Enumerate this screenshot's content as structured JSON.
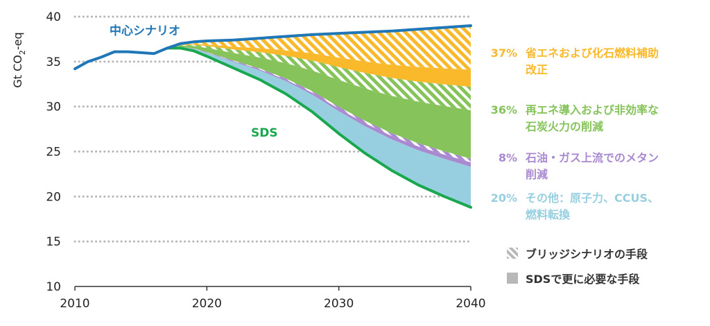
{
  "chart_data": {
    "type": "area",
    "ylabel": "Gt CO2-eq",
    "ylabel_main": "Gt CO",
    "ylabel_sub": "2",
    "ylabel_suffix": "-eq",
    "xlim": [
      2010,
      2040
    ],
    "ylim": [
      10,
      40
    ],
    "x_ticks": [
      "2010",
      "2020",
      "2030",
      "2040"
    ],
    "y_ticks": [
      "10",
      "15",
      "20",
      "25",
      "30",
      "35",
      "40"
    ],
    "grid": "horizontal-dotted",
    "series": [
      {
        "name": "中心シナリオ",
        "color": "#1f77b8",
        "points": [
          [
            2010,
            34.2
          ],
          [
            2011,
            35.0
          ],
          [
            2012,
            35.5
          ],
          [
            2013,
            36.1
          ],
          [
            2014,
            36.1
          ],
          [
            2015,
            36.0
          ],
          [
            2016,
            35.9
          ],
          [
            2017,
            36.5
          ],
          [
            2018,
            37.0
          ],
          [
            2019,
            37.2
          ],
          [
            2020,
            37.3
          ],
          [
            2022,
            37.4
          ],
          [
            2025,
            37.7
          ],
          [
            2028,
            38.0
          ],
          [
            2031,
            38.2
          ],
          [
            2034,
            38.4
          ],
          [
            2037,
            38.7
          ],
          [
            2040,
            39.0
          ]
        ]
      },
      {
        "name": "SDS",
        "color": "#1aa84f",
        "points": [
          [
            2017,
            36.5
          ],
          [
            2018,
            36.5
          ],
          [
            2019,
            36.2
          ],
          [
            2020,
            35.6
          ],
          [
            2022,
            34.3
          ],
          [
            2024,
            33.0
          ],
          [
            2026,
            31.4
          ],
          [
            2028,
            29.4
          ],
          [
            2030,
            27.0
          ],
          [
            2032,
            24.8
          ],
          [
            2034,
            22.9
          ],
          [
            2036,
            21.3
          ],
          [
            2038,
            20.0
          ],
          [
            2040,
            18.8
          ]
        ]
      }
    ],
    "wedges": [
      {
        "label": "省エネおよび化石燃料補助改正",
        "label_lines": [
          "省エネおよび化石燃料補助",
          "改正"
        ],
        "pct": "37%",
        "color": "#f9b92b",
        "bridge_bottom_2040": 34.1,
        "solid_bottom_2040": 32.2
      },
      {
        "label": "再エネ導入および非効率な石炭火力の削減",
        "label_lines": [
          "再エネ導入および非効率な",
          "石炭火力の削減"
        ],
        "pct": "36%",
        "color": "#86c35a",
        "bridge_bottom_2040": 29.6,
        "solid_bottom_2040": 24.2
      },
      {
        "label": "石油・ガス上流でのメタン削減",
        "label_lines": [
          "石油・ガス上流でのメタン",
          "削減"
        ],
        "pct": "8%",
        "color": "#a98ad0",
        "bridge_bottom_2040": 23.8,
        "solid_bottom_2040": 23.3
      },
      {
        "label": "その他：原子力、CCUS、燃料転換",
        "label_lines": [
          "その他：原子力、CCUS、",
          "燃料転換"
        ],
        "pct": "20%",
        "color": "#97cfe0",
        "bridge_bottom_2040": 23.3,
        "solid_bottom_2040": 18.8
      }
    ],
    "legend": [
      {
        "label": "ブリッジシナリオの手段",
        "style": "hatched"
      },
      {
        "label": "SDSで更に必要な手段",
        "style": "solid"
      }
    ]
  }
}
